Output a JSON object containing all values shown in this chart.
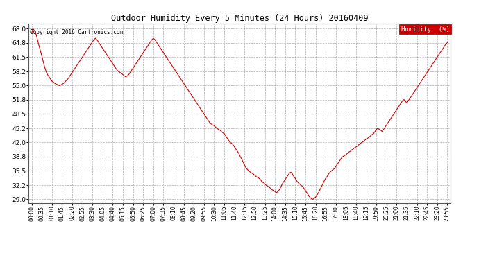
{
  "title": "Outdoor Humidity Every 5 Minutes (24 Hours) 20160409",
  "copyright_text": "Copyright 2016 Cartronics.com",
  "legend_label": "Humidity  (%)",
  "line_color": "#cc0000",
  "background_color": "#ffffff",
  "grid_color": "#999999",
  "yticks": [
    29.0,
    32.2,
    35.5,
    38.8,
    42.0,
    45.2,
    48.5,
    51.8,
    55.0,
    58.2,
    61.5,
    64.8,
    68.0
  ],
  "ylim": [
    28.2,
    69.2
  ],
  "humidity_data": [
    67.0,
    68.0,
    67.5,
    66.8,
    65.5,
    64.2,
    63.0,
    61.8,
    60.5,
    59.2,
    58.2,
    57.5,
    57.0,
    56.5,
    56.0,
    55.8,
    55.5,
    55.3,
    55.2,
    55.0,
    55.1,
    55.3,
    55.5,
    55.8,
    56.2,
    56.5,
    57.0,
    57.5,
    58.0,
    58.5,
    59.0,
    59.5,
    60.0,
    60.5,
    61.0,
    61.5,
    62.0,
    62.5,
    63.0,
    63.5,
    64.0,
    64.5,
    65.0,
    65.5,
    65.8,
    65.5,
    65.0,
    64.5,
    64.0,
    63.5,
    63.0,
    62.5,
    62.0,
    61.5,
    61.0,
    60.5,
    60.0,
    59.5,
    59.0,
    58.5,
    58.2,
    58.0,
    57.8,
    57.5,
    57.2,
    57.0,
    57.2,
    57.5,
    58.0,
    58.5,
    59.0,
    59.5,
    60.0,
    60.5,
    61.0,
    61.5,
    62.0,
    62.5,
    63.0,
    63.5,
    64.0,
    64.5,
    65.0,
    65.5,
    65.8,
    65.5,
    65.0,
    64.5,
    64.0,
    63.5,
    63.0,
    62.5,
    62.0,
    61.5,
    61.0,
    60.5,
    60.0,
    59.5,
    59.0,
    58.5,
    58.0,
    57.5,
    57.0,
    56.5,
    56.0,
    55.5,
    55.0,
    54.5,
    54.0,
    53.5,
    53.0,
    52.5,
    52.0,
    51.5,
    51.0,
    50.5,
    50.0,
    49.5,
    49.0,
    48.5,
    48.0,
    47.5,
    47.0,
    46.5,
    46.2,
    46.0,
    45.8,
    45.5,
    45.2,
    45.0,
    44.8,
    44.5,
    44.2,
    44.0,
    43.5,
    43.0,
    42.5,
    42.0,
    41.8,
    41.5,
    41.0,
    40.5,
    40.0,
    39.5,
    38.8,
    38.2,
    37.5,
    36.8,
    36.2,
    35.8,
    35.5,
    35.2,
    35.0,
    34.8,
    34.5,
    34.2,
    34.0,
    33.8,
    33.5,
    33.0,
    32.8,
    32.5,
    32.2,
    32.0,
    31.8,
    31.5,
    31.2,
    31.0,
    30.8,
    30.5,
    30.8,
    31.2,
    31.8,
    32.5,
    33.0,
    33.5,
    34.0,
    34.5,
    35.0,
    35.2,
    34.8,
    34.2,
    33.8,
    33.2,
    32.8,
    32.5,
    32.2,
    32.0,
    31.5,
    31.0,
    30.5,
    30.0,
    29.5,
    29.2,
    29.0,
    29.2,
    29.5,
    30.0,
    30.5,
    31.2,
    31.8,
    32.5,
    33.2,
    33.8,
    34.2,
    34.8,
    35.2,
    35.5,
    35.8,
    36.0,
    36.5,
    37.0,
    37.5,
    38.0,
    38.5,
    38.8,
    39.0,
    39.2,
    39.5,
    39.8,
    40.0,
    40.3,
    40.5,
    40.8,
    41.0,
    41.2,
    41.5,
    41.8,
    42.0,
    42.2,
    42.5,
    42.8,
    43.0,
    43.2,
    43.5,
    43.8,
    44.0,
    44.5,
    45.0,
    45.2,
    45.0,
    44.8,
    44.5,
    45.0,
    45.5,
    46.0,
    46.5,
    47.0,
    47.5,
    48.0,
    48.5,
    49.0,
    49.5,
    50.0,
    50.5,
    51.0,
    51.5,
    51.8,
    51.5,
    51.0,
    51.5,
    52.0,
    52.5,
    53.0,
    53.5,
    54.0,
    54.5,
    55.0,
    55.5,
    56.0,
    56.5,
    57.0,
    57.5,
    58.0,
    58.5,
    59.0,
    59.5,
    60.0,
    60.5,
    61.0,
    61.5,
    62.0,
    62.5,
    63.0,
    63.5,
    64.0,
    64.5,
    64.8
  ]
}
